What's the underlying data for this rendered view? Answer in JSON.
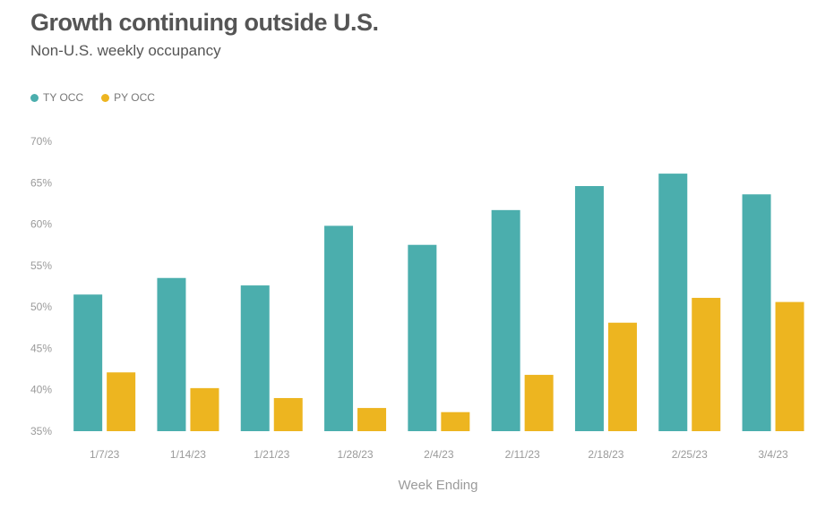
{
  "header": {
    "title": "Growth continuing outside U.S.",
    "subtitle": "Non-U.S. weekly occupancy"
  },
  "chart_data": {
    "type": "bar",
    "title": "Growth continuing outside U.S.",
    "subtitle": "Non-U.S. weekly occupancy",
    "xlabel": "Week Ending",
    "ylabel": "",
    "categories": [
      "1/7/23",
      "1/14/23",
      "1/21/23",
      "1/28/23",
      "2/4/23",
      "2/11/23",
      "2/18/23",
      "2/25/23",
      "3/4/23"
    ],
    "series": [
      {
        "name": "TY OCC",
        "color": "#4BAEAD",
        "values": [
          51.5,
          53.5,
          52.6,
          59.8,
          57.5,
          61.7,
          64.6,
          66.1,
          63.6
        ]
      },
      {
        "name": "PY OCC",
        "color": "#EDB520",
        "values": [
          42.1,
          40.2,
          39.0,
          37.8,
          37.3,
          41.8,
          48.1,
          51.1,
          50.6
        ]
      }
    ],
    "ylim": [
      35,
      70
    ],
    "yticks": [
      35,
      40,
      45,
      50,
      55,
      60,
      65,
      70
    ],
    "ytick_labels": [
      "35%",
      "40%",
      "45%",
      "50%",
      "55%",
      "60%",
      "65%",
      "70%"
    ],
    "grid": false,
    "legend": "top-left"
  }
}
